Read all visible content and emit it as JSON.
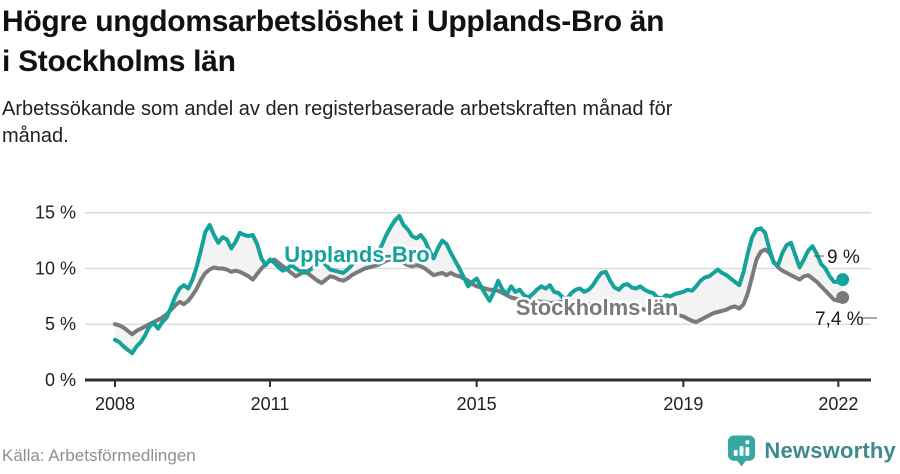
{
  "header": {
    "title": "Högre ungdomsarbetslöshet i Upplands-Bro än\ni Stockholms län",
    "subtitle": "Arbetssökande som andel av den registerbaserade arbetskraften månad för\nmånad."
  },
  "footer": {
    "source": "Källa: Arbetsförmedlingen",
    "brand": "Newsworthy",
    "brand_icon": "newsworthy-pin-barchart-icon"
  },
  "colors": {
    "upplands_bro_line": "#14a29b",
    "stockholm_line": "#797a7c",
    "between_area_fill": "#f3f3f3",
    "gridline": "#d8d8d8",
    "axis": "#2f2f2f",
    "tick_text": "#222222",
    "annotation_text": "#1a1a1a",
    "brand_teal": "#36a7a1",
    "brand_text": "#3e8a8c"
  },
  "chart_data": {
    "type": "line",
    "title": "Högre ungdomsarbetslöshet i Upplands-Bro än i Stockholms län",
    "subtitle": "Arbetssökande som andel av den registerbaserade arbetskraften månad för månad.",
    "unit": "%",
    "frequency": "monthly",
    "x_start": "2008-01",
    "x_end": "2022-02",
    "ylim": [
      0,
      16
    ],
    "grid": "horizontal",
    "y_tick_values": [
      0,
      5,
      10,
      15
    ],
    "y_tick_labels": [
      "0 %",
      "5 %",
      "10 %",
      "15 %"
    ],
    "x_tick_years": [
      2008,
      2011,
      2015,
      2019,
      2022
    ],
    "x_tick_labels": [
      "2008",
      "2011",
      "2015",
      "2019",
      "2022"
    ],
    "legend_position": "inline-labels",
    "series": [
      {
        "name": "Upplands-Bro",
        "color": "#14a29b",
        "end_label": "9 %",
        "last_value": 9.0,
        "values": [
          3.6,
          3.4,
          3.0,
          2.7,
          2.4,
          3.0,
          3.4,
          4.0,
          4.8,
          5.1,
          4.6,
          5.2,
          5.6,
          6.5,
          7.5,
          8.2,
          8.5,
          8.2,
          9.0,
          10.2,
          11.7,
          13.3,
          13.9,
          13.0,
          12.3,
          12.8,
          12.6,
          11.8,
          12.4,
          13.2,
          13.0,
          12.9,
          13.0,
          12.2,
          10.9,
          10.3,
          10.8,
          10.5,
          10.1,
          9.8,
          10.0,
          10.3,
          10.0,
          9.8,
          9.6,
          9.8,
          10.1,
          10.5,
          10.8,
          10.3,
          9.9,
          9.8,
          9.7,
          9.6,
          9.9,
          10.3,
          10.9,
          11.5,
          11.2,
          10.9,
          11.0,
          11.4,
          12.1,
          13.0,
          13.7,
          14.3,
          14.7,
          13.9,
          13.5,
          12.9,
          12.7,
          13.0,
          12.5,
          11.6,
          10.9,
          11.8,
          12.5,
          12.2,
          11.4,
          10.7,
          10.0,
          9.2,
          8.4,
          8.8,
          9.1,
          8.4,
          7.7,
          7.1,
          7.9,
          8.9,
          8.1,
          7.7,
          8.4,
          7.9,
          8.1,
          7.6,
          7.4,
          7.7,
          8.1,
          8.4,
          8.2,
          8.5,
          7.9,
          7.8,
          7.4,
          7.3,
          7.8,
          8.1,
          8.2,
          7.9,
          8.1,
          8.5,
          9.1,
          9.6,
          9.7,
          8.9,
          8.3,
          8.1,
          8.5,
          8.6,
          8.3,
          8.2,
          8.4,
          8.1,
          7.9,
          7.8,
          7.4,
          7.3,
          7.6,
          7.5,
          7.7,
          7.8,
          7.9,
          8.1,
          8.0,
          8.4,
          8.9,
          9.2,
          9.3,
          9.6,
          9.9,
          9.6,
          9.4,
          9.1,
          8.8,
          8.5,
          9.7,
          11.4,
          12.8,
          13.5,
          13.6,
          13.2,
          11.7,
          10.5,
          10.3,
          11.4,
          12.1,
          12.3,
          11.2,
          10.1,
          10.8,
          11.6,
          12.0,
          11.3,
          10.4,
          10.0,
          9.3,
          8.8,
          8.8,
          9.0
        ]
      },
      {
        "name": "Stockholms län",
        "color": "#797a7c",
        "end_label": "7,4 %",
        "last_value": 7.4,
        "values": [
          5.0,
          4.9,
          4.7,
          4.4,
          4.1,
          4.4,
          4.6,
          4.8,
          5.0,
          5.2,
          5.4,
          5.6,
          5.9,
          6.3,
          6.7,
          7.0,
          6.8,
          7.1,
          7.6,
          8.2,
          9.0,
          9.6,
          9.9,
          10.1,
          10.0,
          10.0,
          9.9,
          9.7,
          9.8,
          9.7,
          9.5,
          9.3,
          9.0,
          9.5,
          10.0,
          10.4,
          10.7,
          10.8,
          10.5,
          10.2,
          9.9,
          9.6,
          9.3,
          9.5,
          9.8,
          9.5,
          9.2,
          8.9,
          8.7,
          9.0,
          9.3,
          9.2,
          9.0,
          8.9,
          9.1,
          9.4,
          9.6,
          9.8,
          10.0,
          10.1,
          10.2,
          10.3,
          10.5,
          10.7,
          10.8,
          10.8,
          10.7,
          10.5,
          10.3,
          10.2,
          10.3,
          10.2,
          10.0,
          9.7,
          9.4,
          9.5,
          9.6,
          9.4,
          9.6,
          9.4,
          9.3,
          9.1,
          8.9,
          8.6,
          8.4,
          8.3,
          8.2,
          8.1,
          8.1,
          8.0,
          7.8,
          7.6,
          7.4,
          7.3,
          7.2,
          7.1,
          7.1,
          7.2,
          7.1,
          7.0,
          7.0,
          6.9,
          6.9,
          7.0,
          7.0,
          6.9,
          6.9,
          6.8,
          6.8,
          6.9,
          6.8,
          6.7,
          6.7,
          6.6,
          6.6,
          6.7,
          6.6,
          6.5,
          6.5,
          6.4,
          6.4,
          6.5,
          6.4,
          6.3,
          6.2,
          6.2,
          6.1,
          6.2,
          6.1,
          6.0,
          5.9,
          5.8,
          5.7,
          5.5,
          5.3,
          5.2,
          5.4,
          5.6,
          5.8,
          6.0,
          6.1,
          6.2,
          6.3,
          6.5,
          6.6,
          6.4,
          6.8,
          7.8,
          9.3,
          10.8,
          11.5,
          11.7,
          11.4,
          10.6,
          10.1,
          9.8,
          9.6,
          9.4,
          9.2,
          9.0,
          9.3,
          9.4,
          9.1,
          8.8,
          8.4,
          8.0,
          7.6,
          7.2,
          7.1,
          7.4
        ]
      }
    ]
  }
}
